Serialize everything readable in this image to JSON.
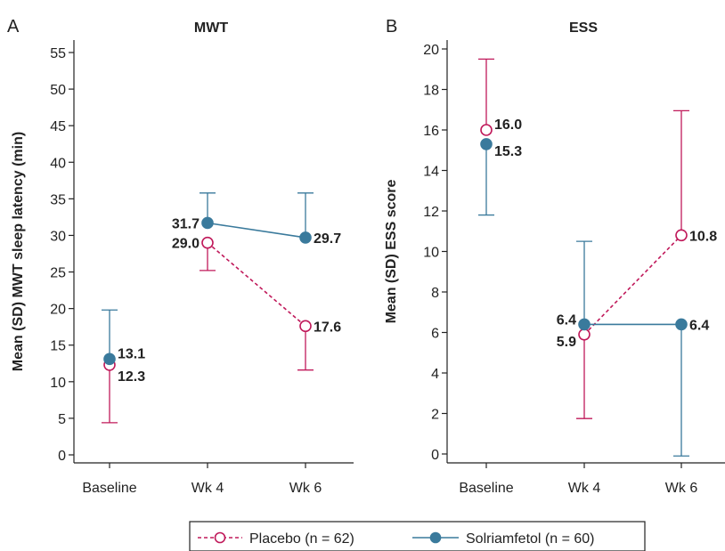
{
  "colors": {
    "placebo": "#c0195a",
    "solriamfetol": "#3a7a9c",
    "axis": "#222222"
  },
  "legend": {
    "placebo_label": "Placebo (n = 62)",
    "solriamfetol_label": "Solriamfetol (n = 60)"
  },
  "chart_data": [
    {
      "type": "line",
      "panel_letter": "A",
      "title": "MWT",
      "ylabel": "Mean (SD) MWT sleep latency (min)",
      "xlabel": "",
      "categories": [
        "Baseline",
        "Wk 4",
        "Wk 6"
      ],
      "ylim": [
        0,
        55
      ],
      "yticks": [
        0,
        5,
        10,
        15,
        20,
        25,
        30,
        35,
        40,
        45,
        50,
        55
      ],
      "series": [
        {
          "name": "Placebo (n = 62)",
          "key": "placebo",
          "marker": "open-circle",
          "line": "dashed",
          "points": [
            {
              "x": "Baseline",
              "y": 12.3,
              "label": "12.3",
              "err_low": 4.4,
              "err_high": null
            },
            {
              "x": "Wk 4",
              "y": 29.0,
              "label": "29.0",
              "err_low": 25.2,
              "err_high": null
            },
            {
              "x": "Wk 6",
              "y": 17.6,
              "label": "17.6",
              "err_low": 11.6,
              "err_high": null
            }
          ]
        },
        {
          "name": "Solriamfetol (n = 60)",
          "key": "solriamfetol",
          "marker": "filled-circle",
          "line": "solid",
          "points": [
            {
              "x": "Baseline",
              "y": 13.1,
              "label": "13.1",
              "err_low": null,
              "err_high": 19.8
            },
            {
              "x": "Wk 4",
              "y": 31.7,
              "label": "31.7",
              "err_low": null,
              "err_high": 35.8
            },
            {
              "x": "Wk 6",
              "y": 29.7,
              "label": "29.7",
              "err_low": null,
              "err_high": 35.8
            }
          ]
        }
      ]
    },
    {
      "type": "line",
      "panel_letter": "B",
      "title": "ESS",
      "ylabel": "Mean (SD) ESS score",
      "xlabel": "",
      "categories": [
        "Baseline",
        "Wk 4",
        "Wk 6"
      ],
      "ylim": [
        0,
        20
      ],
      "yticks": [
        0,
        2,
        4,
        6,
        8,
        10,
        12,
        14,
        16,
        18,
        20
      ],
      "series": [
        {
          "name": "Placebo (n = 62)",
          "key": "placebo",
          "marker": "open-circle",
          "line": "dashed",
          "points": [
            {
              "x": "Baseline",
              "y": 16.0,
              "label": "16.0",
              "err_low": null,
              "err_high": 19.5
            },
            {
              "x": "Wk 4",
              "y": 5.9,
              "label": "5.9",
              "err_low": 1.75,
              "err_high": null
            },
            {
              "x": "Wk 6",
              "y": 10.8,
              "label": "10.8",
              "err_low": null,
              "err_high": 16.95
            }
          ]
        },
        {
          "name": "Solriamfetol (n = 60)",
          "key": "solriamfetol",
          "marker": "filled-circle",
          "line": "solid",
          "points": [
            {
              "x": "Baseline",
              "y": 15.3,
              "label": "15.3",
              "err_low": 11.8,
              "err_high": null
            },
            {
              "x": "Wk 4",
              "y": 6.4,
              "label": "6.4",
              "err_low": null,
              "err_high": 10.5
            },
            {
              "x": "Wk 6",
              "y": 6.4,
              "label": "6.4",
              "err_low": -0.1,
              "err_high": null
            }
          ]
        }
      ]
    }
  ]
}
